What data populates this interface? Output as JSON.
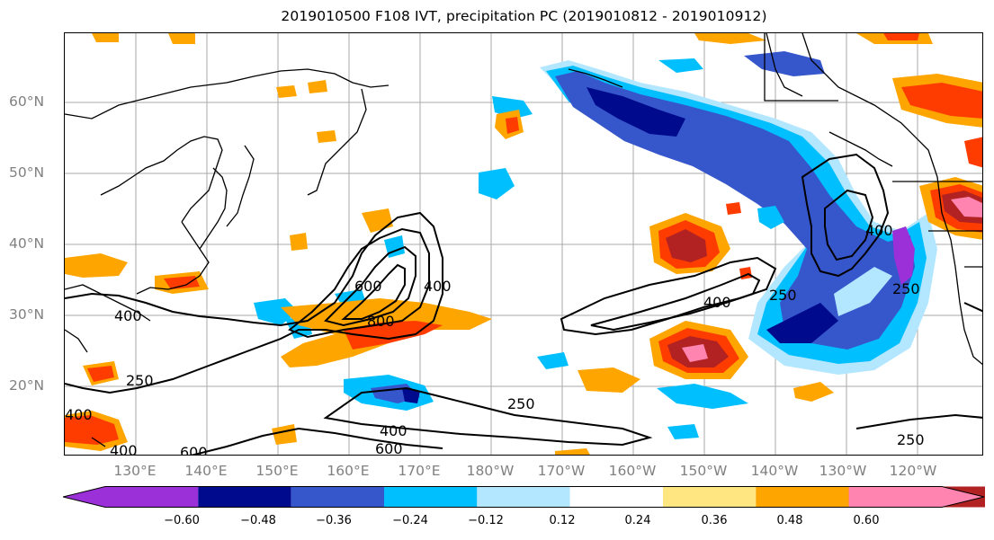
{
  "title": "2019010500 F108 IVT, precipitation PC (2019010812 - 2019010912)",
  "lat_labels": [
    {
      "text": "60°N",
      "lat": 60
    },
    {
      "text": "50°N",
      "lat": 50
    },
    {
      "text": "40°N",
      "lat": 40
    },
    {
      "text": "30°N",
      "lat": 30
    },
    {
      "text": "20°N",
      "lat": 20
    }
  ],
  "lon_labels": [
    "130°E",
    "140°E",
    "150°E",
    "160°E",
    "170°E",
    "180°W",
    "170°W",
    "160°W",
    "150°W",
    "140°W",
    "130°W",
    "120°W"
  ],
  "contour_labels": [
    "600",
    "400",
    "800",
    "400",
    "400",
    "250",
    "250",
    "400",
    "600",
    "250",
    "400",
    "250",
    "400",
    "400",
    "600",
    "250"
  ],
  "colorbar": {
    "ticks": [
      "−0.60",
      "−0.48",
      "−0.36",
      "−0.24",
      "−0.12",
      "0.12",
      "0.24",
      "0.36",
      "0.48",
      "0.60"
    ],
    "colors": [
      "#9b30d9",
      "#000a8c",
      "#3656cc",
      "#00bfff",
      "#b3e6ff",
      "#ffffff",
      "#ffe680",
      "#ffa500",
      "#ff3c00",
      "#b22222",
      "#ff85b0"
    ]
  }
}
